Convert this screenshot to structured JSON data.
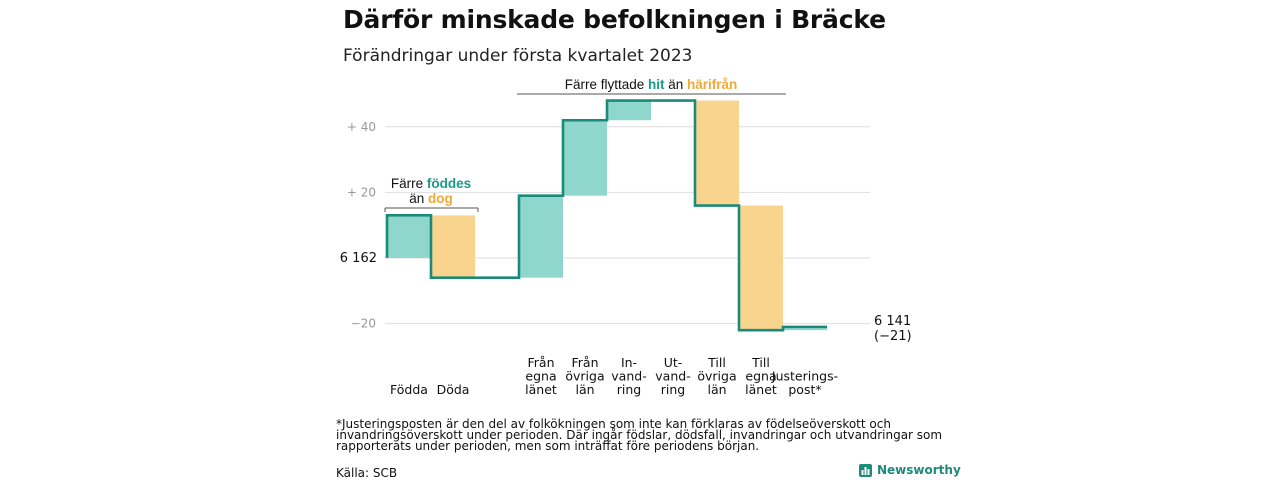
{
  "title": "Därför minskade befolkningen i Bräcke",
  "subtitle": "Förändringar under första kvartalet 2023",
  "chart_data": {
    "type": "waterfall",
    "start_value": 6162,
    "end_value": 6141,
    "y_ticks": [
      {
        "value": 40,
        "label": "+ 40"
      },
      {
        "value": 20,
        "label": "+ 20"
      },
      {
        "value": -20,
        "label": "−20"
      }
    ],
    "start_label": "6 162",
    "end_label_lines": [
      "6 141",
      "(−21)"
    ],
    "steps": [
      {
        "label": [
          "Födda"
        ],
        "change": 13,
        "kind": "increase"
      },
      {
        "label": [
          "Döda"
        ],
        "change": -19,
        "kind": "decrease"
      },
      {
        "label": [
          ""
        ],
        "change": 0,
        "kind": "gap"
      },
      {
        "label": [
          "Från",
          "egna",
          "länet"
        ],
        "change": 25,
        "kind": "increase"
      },
      {
        "label": [
          "Från",
          "övriga",
          "län"
        ],
        "change": 23,
        "kind": "increase"
      },
      {
        "label": [
          "In-",
          "vand-",
          "ring"
        ],
        "change": 6,
        "kind": "increase"
      },
      {
        "label": [
          "Ut-",
          "vand-",
          "ring"
        ],
        "change": 0,
        "kind": "gap"
      },
      {
        "label": [
          "Till",
          "övriga",
          "län"
        ],
        "change": -32,
        "kind": "decrease"
      },
      {
        "label": [
          "Till",
          "egna",
          "länet"
        ],
        "change": -38,
        "kind": "decrease"
      },
      {
        "label": [
          "Justerings-",
          "post*"
        ],
        "change": 1,
        "kind": "increase"
      }
    ],
    "annotations": [
      {
        "line1": [
          "Färre ",
          "föddes"
        ],
        "line2": [
          "än ",
          "dog"
        ]
      },
      {
        "line1": [
          "Färre flyttade ",
          "hit",
          " än ",
          "härifrån"
        ]
      }
    ],
    "colors": {
      "increase": "#8fd6cc",
      "decrease": "#f9d48e",
      "line": "#1b8a7b",
      "grid": "#dddddd",
      "hl_teal": "#1b9a8a",
      "hl_orange": "#f0a83a"
    }
  },
  "footnote": "*Justeringsposten är den del av folkökningen som inte kan förklaras av födelseöverskott och invandringsöverskott under perioden. Där ingår födslar, dödsfall, invandringar och utvandringar som rapporterats under perioden, men som inträffat före periodens början.",
  "source": "Källa: SCB",
  "brand": "Newsworthy"
}
